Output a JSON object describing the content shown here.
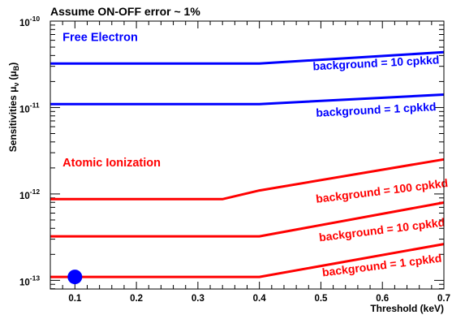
{
  "chart_data": {
    "type": "line",
    "title": "Assume ON-OFF error ~ 1%",
    "xlabel": "Threshold (keV)",
    "ylabel": "Sensitivities μ",
    "ylabel_sub_nu": "ν",
    "ylabel_paren": "(μ",
    "ylabel_sub_B": "B",
    "ylabel_close": ")",
    "xlim": [
      0.06,
      0.7
    ],
    "ylim_exp": [
      -13.1,
      -10.0
    ],
    "y_scale": "log",
    "x_ticks": [
      {
        "value": 0.1,
        "label": "0.1"
      },
      {
        "value": 0.2,
        "label": "0.2"
      },
      {
        "value": 0.3,
        "label": "0.3"
      },
      {
        "value": 0.4,
        "label": "0.4"
      },
      {
        "value": 0.5,
        "label": "0.5"
      },
      {
        "value": 0.6,
        "label": "0.6"
      },
      {
        "value": 0.7,
        "label": "0.7"
      }
    ],
    "y_ticks": [
      {
        "exp": -13,
        "base": "10",
        "sup": "-13"
      },
      {
        "exp": -12,
        "base": "10",
        "sup": "-12"
      },
      {
        "exp": -11,
        "base": "10",
        "sup": "-11"
      },
      {
        "exp": -10,
        "base": "10",
        "sup": "-10"
      }
    ],
    "annotations": [
      {
        "text": "Free Electron",
        "color": "#0000ff",
        "x": 0.08,
        "y_exp": -10.23
      },
      {
        "text": "Atomic Ionization",
        "color": "#ff0000",
        "x": 0.08,
        "y_exp": -11.68
      }
    ],
    "series": [
      {
        "label": "background = 10 cpkkd",
        "color": "#0000ff",
        "label_x": 0.59,
        "label_y_exp": -10.53,
        "label_angle": -3,
        "points": [
          [
            0.06,
            -10.49
          ],
          [
            0.4,
            -10.49
          ],
          [
            0.7,
            -10.36
          ]
        ]
      },
      {
        "label": "background = 1 cpkkd",
        "color": "#0000ff",
        "label_x": 0.59,
        "label_y_exp": -11.07,
        "label_angle": -3,
        "points": [
          [
            0.06,
            -10.96
          ],
          [
            0.4,
            -10.96
          ],
          [
            0.7,
            -10.85
          ]
        ]
      },
      {
        "label": "background = 100 cpkkd",
        "color": "#ff0000",
        "label_x": 0.6,
        "label_y_exp": -12.01,
        "label_angle": -7,
        "points": [
          [
            0.06,
            -12.06
          ],
          [
            0.34,
            -12.06
          ],
          [
            0.4,
            -11.96
          ],
          [
            0.7,
            -11.6
          ]
        ]
      },
      {
        "label": "background = 10 cpkkd",
        "color": "#ff0000",
        "label_x": 0.6,
        "label_y_exp": -12.46,
        "label_angle": -7,
        "points": [
          [
            0.06,
            -12.49
          ],
          [
            0.4,
            -12.49
          ],
          [
            0.7,
            -12.1
          ]
        ]
      },
      {
        "label": "background = 1 cpkkd",
        "color": "#ff0000",
        "label_x": 0.6,
        "label_y_exp": -12.87,
        "label_angle": -7,
        "points": [
          [
            0.06,
            -12.96
          ],
          [
            0.4,
            -12.96
          ],
          [
            0.7,
            -12.58
          ]
        ]
      }
    ],
    "markers": [
      {
        "x": 0.1,
        "y_exp": -12.96,
        "color": "#0000ff"
      }
    ]
  }
}
